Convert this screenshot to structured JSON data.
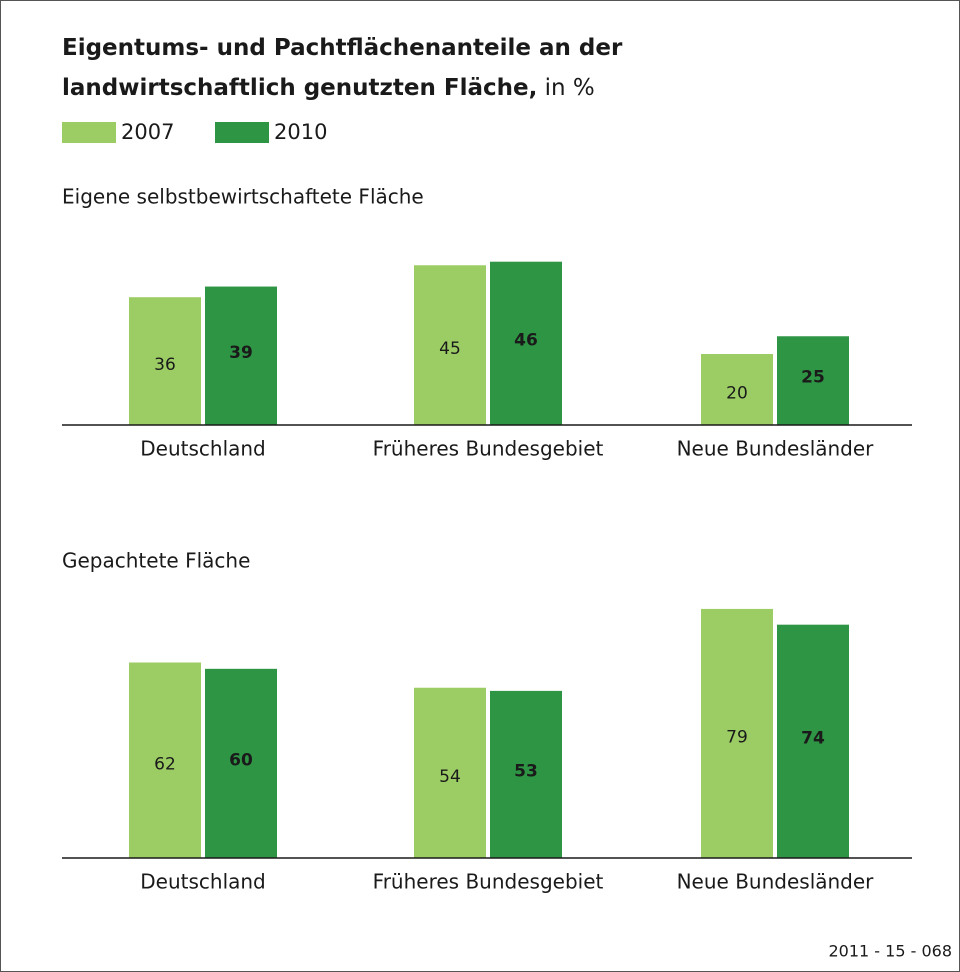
{
  "title": "Eigentums- und Pachtflächenanteile an der landwirtschaftlich genutzten Fläche,",
  "title_unit": "in %",
  "source": "2011 - 15 - 068",
  "chart_data": [
    {
      "type": "bar",
      "subtitle": "Eigene selbstbewirtschaftete Fläche",
      "categories": [
        "Deutschland",
        "Früheres Bundesgebiet",
        "Neue Bundesländer"
      ],
      "series": [
        {
          "name": "2007",
          "color": "#9ccd65",
          "values": [
            36,
            45,
            20
          ]
        },
        {
          "name": "2010",
          "color": "#2e9545",
          "values": [
            39,
            46,
            25
          ]
        }
      ],
      "ylim": [
        0,
        60
      ]
    },
    {
      "type": "bar",
      "subtitle": "Gepachtete Fläche",
      "categories": [
        "Deutschland",
        "Früheres Bundesgebiet",
        "Neue Bundesländer"
      ],
      "series": [
        {
          "color": "#9ccd65",
          "values": [
            62,
            54,
            79
          ]
        },
        {
          "color": "#2e9545",
          "values": [
            60,
            53,
            74
          ]
        }
      ],
      "ylim": [
        0,
        85
      ]
    }
  ]
}
